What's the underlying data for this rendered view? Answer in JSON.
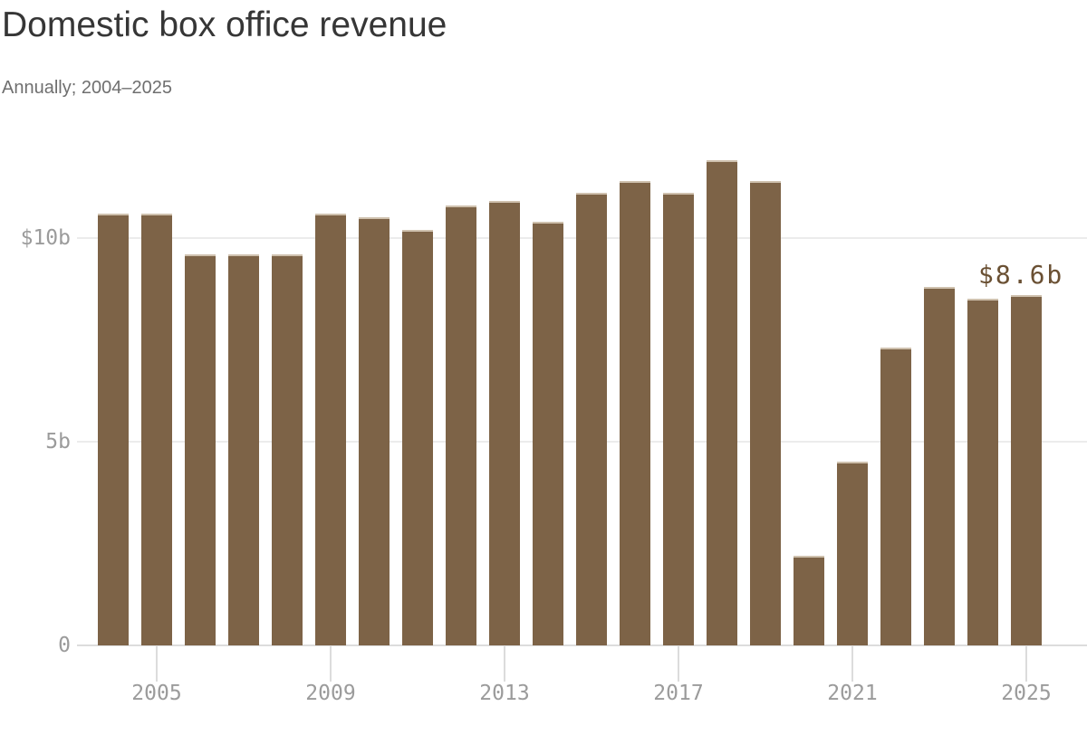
{
  "title": "Domestic box office revenue",
  "subtitle": "Annually; 2004–2025",
  "annotation": {
    "text": "$8.6b",
    "target_year": 2025,
    "color": "#6a5033"
  },
  "colors": {
    "bar": "#7d6347",
    "bar_top_edge": "#cfc1ae",
    "gridline": "#ececec",
    "axis_line": "#dcdcdc",
    "tick": "#dcdcdc",
    "axis_label": "#9b9b9b",
    "title": "#363636",
    "subtitle": "#6f6f6f",
    "background": "#ffffff"
  },
  "y_axis": {
    "ticks": [
      {
        "label": "$10b",
        "value": 10
      },
      {
        "label": "5b",
        "value": 5
      },
      {
        "label": "0",
        "value": 0
      }
    ]
  },
  "x_axis": {
    "ticks": [
      {
        "label": "2005",
        "year": 2005
      },
      {
        "label": "2009",
        "year": 2009
      },
      {
        "label": "2013",
        "year": 2013
      },
      {
        "label": "2017",
        "year": 2017
      },
      {
        "label": "2021",
        "year": 2021
      },
      {
        "label": "2025",
        "year": 2025
      }
    ]
  },
  "chart_data": {
    "type": "bar",
    "title": "Domestic box office revenue",
    "subtitle": "Annually; 2004–2025",
    "unit": "USD billions",
    "categories": [
      2004,
      2005,
      2006,
      2007,
      2008,
      2009,
      2010,
      2011,
      2012,
      2013,
      2014,
      2015,
      2016,
      2017,
      2018,
      2019,
      2020,
      2021,
      2022,
      2023,
      2024,
      2025
    ],
    "values": [
      10.6,
      10.6,
      9.6,
      9.6,
      9.6,
      10.6,
      10.5,
      10.2,
      10.8,
      10.9,
      10.4,
      11.1,
      11.4,
      11.1,
      11.9,
      11.4,
      2.2,
      4.5,
      7.3,
      8.8,
      8.5,
      8.6
    ],
    "ylim": [
      0,
      12.3
    ],
    "grid": "horizontal",
    "legend": "none",
    "bar_color": "#7d6347",
    "annotations": [
      {
        "text": "$8.6b",
        "year": 2025,
        "value": 8.6
      }
    ]
  }
}
